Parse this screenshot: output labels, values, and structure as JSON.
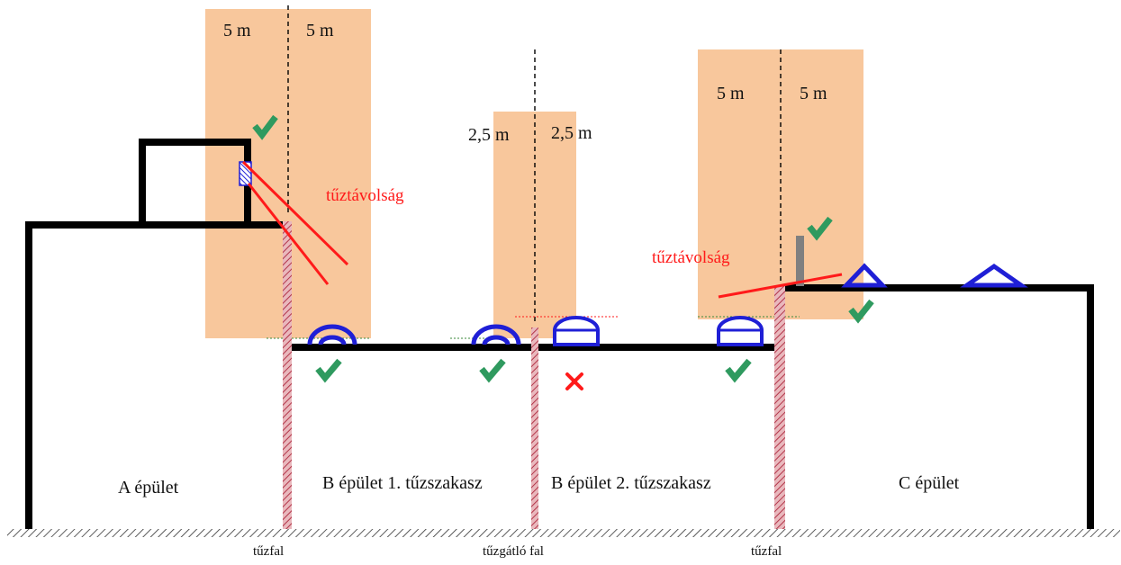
{
  "dimensions": {
    "zone_a_left": "5 m",
    "zone_a_right": "5 m",
    "zone_b_left": "2,5 m",
    "zone_b_right": "2,5 m",
    "zone_c_left": "5 m",
    "zone_c_right": "5 m"
  },
  "labels": {
    "fire_distance_1": "tűztávolság",
    "fire_distance_2": "tűztávolság"
  },
  "buildings": {
    "a": "A épület",
    "b1": "B épület 1. tűzszakasz",
    "b2": "B épület 2. tűzszakasz",
    "c": "C épület"
  },
  "walls": {
    "firewall_1": "tűzfal",
    "fire_barrier": "tűzgátló fal",
    "firewall_2": "tűzfal"
  },
  "colors": {
    "zone": "#f8c79c",
    "outline": "#000000",
    "skylight": "#1f1fd6",
    "check": "#2f9a5f",
    "cross": "#ff1a1a",
    "firewall": "#c95060",
    "label_red": "#ff1a1a"
  },
  "icons": {
    "ok": "check-mark-icon",
    "not_ok": "cross-mark-icon"
  }
}
